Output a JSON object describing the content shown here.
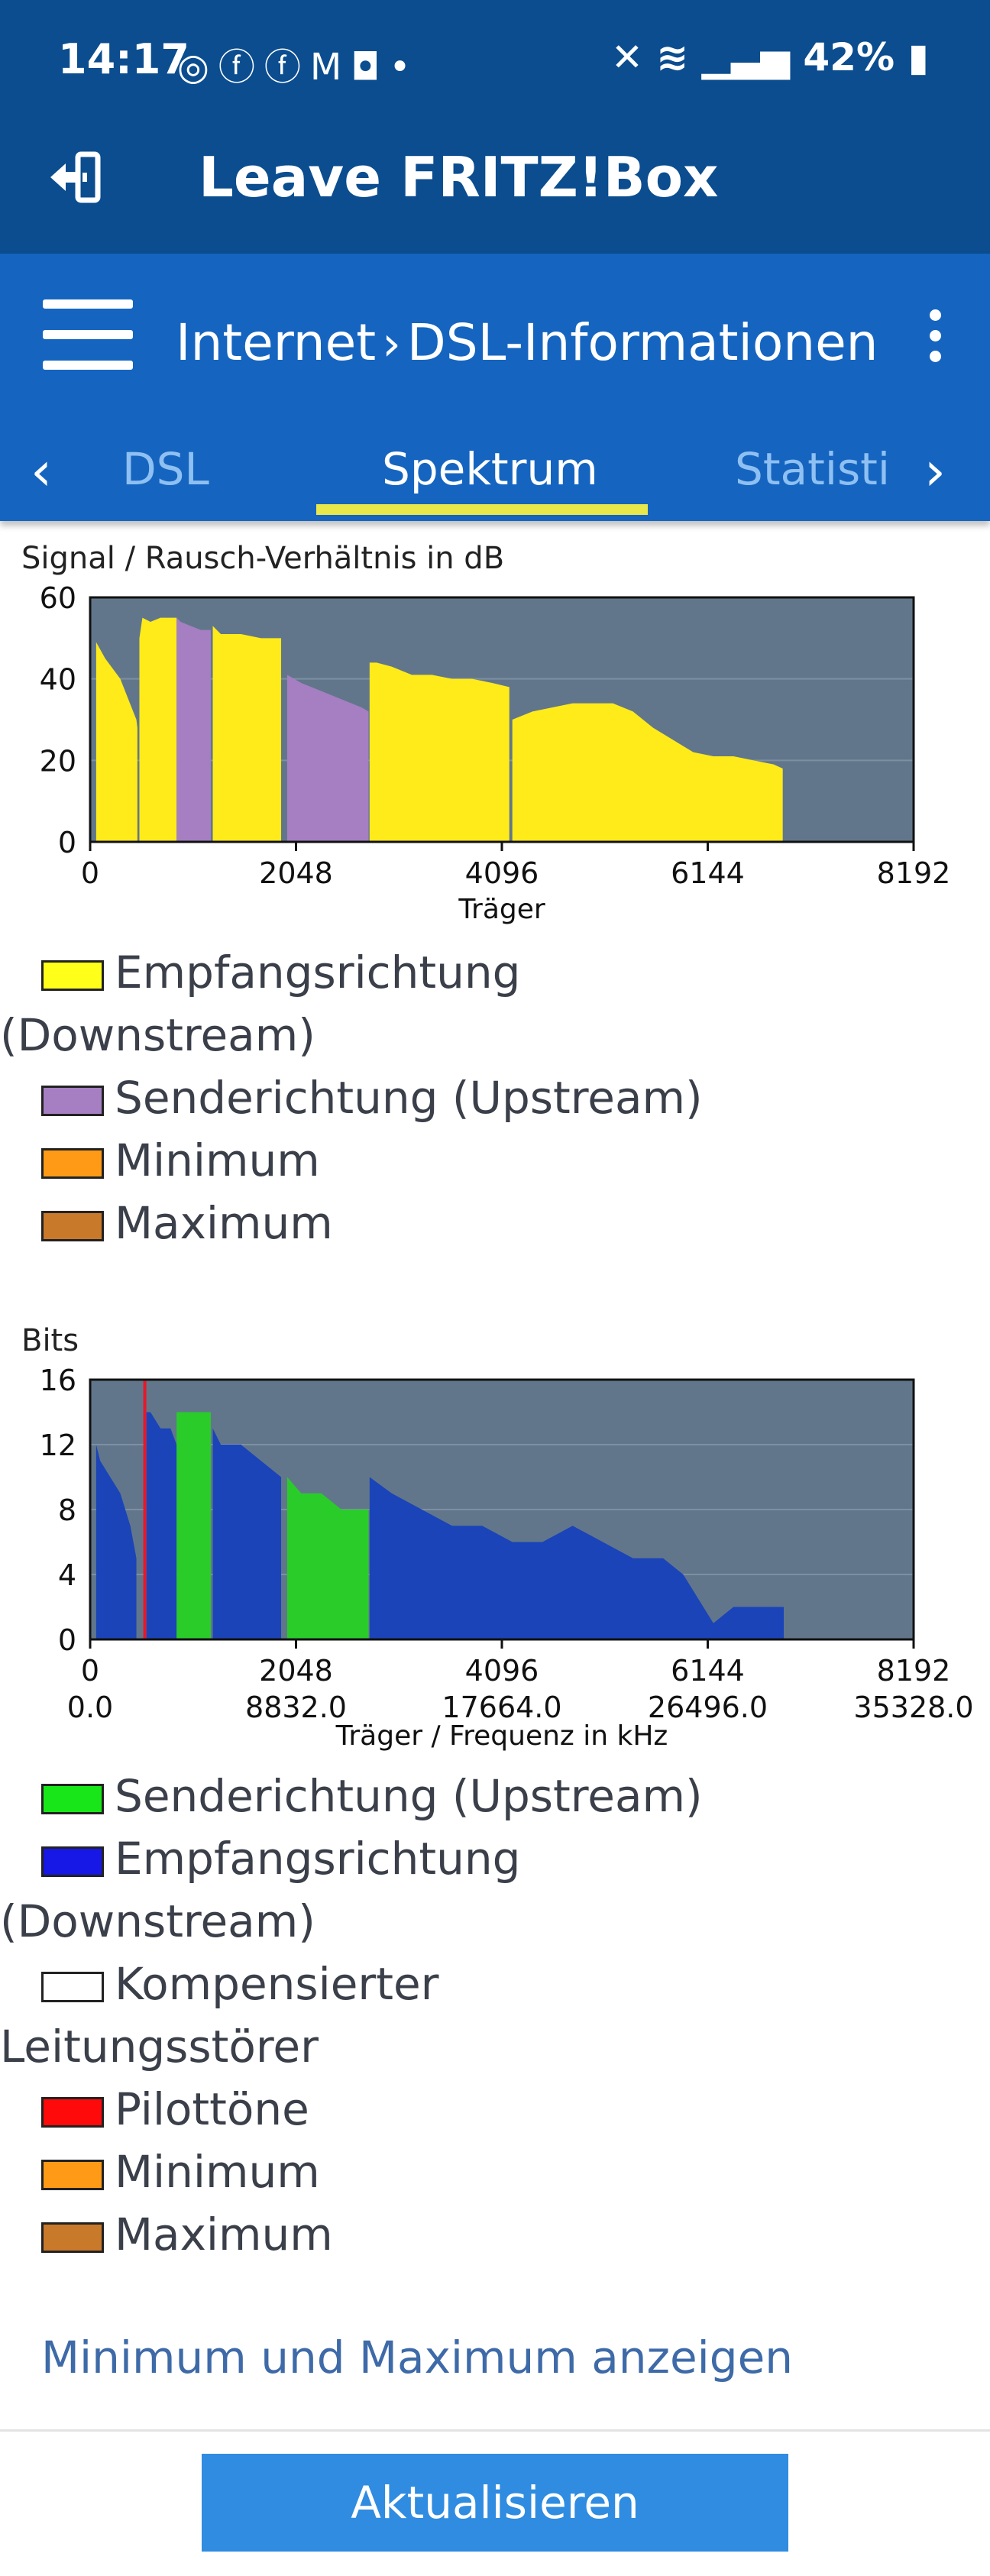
{
  "status_bar": {
    "time": "14:17",
    "battery": "42%",
    "icons": [
      "whatsapp-icon",
      "facebook-icon",
      "facebook-icon",
      "gmail-icon",
      "instagram-icon",
      "dot-icon",
      "mute-icon",
      "wifi-icon",
      "signal-icon",
      "battery-icon"
    ]
  },
  "app_bar": {
    "title": "Leave FRITZ!Box",
    "icon": "exit-icon"
  },
  "nav": {
    "crumb_parent": "Internet",
    "crumb_current": "DSL-Informationen",
    "tabs": [
      {
        "label": "DSL"
      },
      {
        "label": "Spektrum"
      },
      {
        "label": "Statistik"
      }
    ],
    "active_tab": "Spektrum"
  },
  "chart1": {
    "title": "Signal / Rausch-Verhältnis in dB",
    "legend": {
      "downstream": "Empfangsrichtung",
      "downstream2": "(Downstream)",
      "upstream": "Senderichtung (Upstream)",
      "minimum": "Minimum",
      "maximum": "Maximum"
    }
  },
  "chart2": {
    "title": "Bits",
    "legend": {
      "upstream": "Senderichtung (Upstream)",
      "downstream": "Empfangsrichtung",
      "downstream2": "(Downstream)",
      "comp": "Kompensierter",
      "comp2": "Leitungsstörer",
      "pilot": "Pilottöne",
      "minimum": "Minimum",
      "maximum": "Maximum"
    }
  },
  "colors": {
    "downstream_snr": "#ffeb1a",
    "upstream_snr": "#a57fc2",
    "upstream_bits": "#2acc2a",
    "downstream_bits": "#1a44b8",
    "pilot": "#e5182a",
    "minimum": "#ff9a16",
    "maximum": "#c9792a",
    "plot_bg": "#62768b"
  },
  "chart_data": [
    {
      "type": "area",
      "title": "Signal / Rausch-Verhältnis in dB",
      "xlabel": "Träger",
      "ylabel": "",
      "xlim": [
        0,
        8192
      ],
      "ylim": [
        0,
        60
      ],
      "xticks": [
        0,
        2048,
        4096,
        6144,
        8192
      ],
      "yticks": [
        0,
        20,
        40,
        60
      ],
      "grid": true,
      "legend_placement": "below",
      "series": [
        {
          "name": "Empfangsrichtung (Downstream)",
          "segments": [
            {
              "x": [
                60,
                150,
                300,
                460,
                470
              ],
              "y": [
                49,
                45,
                40,
                30,
                28
              ]
            },
            {
              "x": [
                490,
                520,
                600,
                700,
                860
              ],
              "y": [
                50,
                55,
                54,
                55,
                55
              ]
            },
            {
              "x": [
                1220,
                1300,
                1500,
                1700,
                1900
              ],
              "y": [
                53,
                51,
                51,
                50,
                50
              ]
            },
            {
              "x": [
                2780,
                2850,
                3000,
                3200,
                3400,
                3600,
                3800,
                4000,
                4170
              ],
              "y": [
                44,
                44,
                43,
                41,
                41,
                40,
                40,
                39,
                38
              ]
            },
            {
              "x": [
                4200,
                4400,
                4600,
                4800,
                5000,
                5200,
                5400,
                5600,
                5800,
                6000,
                6200,
                6400,
                6600,
                6800,
                6890
              ],
              "y": [
                30,
                32,
                33,
                34,
                34,
                34,
                32,
                28,
                25,
                22,
                21,
                21,
                20,
                19,
                18
              ]
            }
          ]
        },
        {
          "name": "Senderichtung (Upstream)",
          "segments": [
            {
              "x": [
                860,
                900,
                1000,
                1100,
                1200
              ],
              "y": [
                55,
                54,
                53,
                52,
                52
              ]
            },
            {
              "x": [
                1960,
                2100,
                2300,
                2500,
                2700,
                2770
              ],
              "y": [
                41,
                39,
                37,
                35,
                33,
                32
              ]
            }
          ]
        },
        {
          "name": "Minimum",
          "segments": []
        },
        {
          "name": "Maximum",
          "segments": []
        }
      ]
    },
    {
      "type": "area",
      "title": "Bits",
      "xlabel": "Träger / Frequenz in kHz",
      "ylabel": "",
      "xlim": [
        0,
        8192
      ],
      "ylim": [
        0,
        16
      ],
      "xticks": [
        0,
        2048,
        4096,
        6144,
        8192
      ],
      "xticks_secondary": [
        "0.0",
        "8832.0",
        "17664.0",
        "26496.0",
        "35328.0"
      ],
      "yticks": [
        0,
        4,
        8,
        12,
        16
      ],
      "grid": true,
      "legend_placement": "below",
      "series": [
        {
          "name": "Empfangsrichtung (Downstream)",
          "segments": [
            {
              "x": [
                60,
                100,
                200,
                300,
                400,
                460
              ],
              "y": [
                12,
                11,
                10,
                9,
                7,
                5
              ]
            },
            {
              "x": [
                560,
                600,
                700,
                800,
                860
              ],
              "y": [
                14,
                14,
                13,
                13,
                12
              ]
            },
            {
              "x": [
                1220,
                1300,
                1500,
                1700,
                1900
              ],
              "y": [
                13,
                12,
                12,
                11,
                10
              ]
            },
            {
              "x": [
                2780,
                3000,
                3300,
                3600,
                3900,
                4200,
                4500,
                4800,
                5100,
                5400,
                5700,
                5900,
                6000,
                6100,
                6200,
                6400,
                6600,
                6900
              ],
              "y": [
                10,
                9,
                8,
                7,
                7,
                6,
                6,
                7,
                6,
                5,
                5,
                4,
                3,
                2,
                1,
                2,
                2,
                2
              ]
            }
          ]
        },
        {
          "name": "Senderichtung (Upstream)",
          "segments": [
            {
              "x": [
                860,
                900,
                1100,
                1200
              ],
              "y": [
                14,
                14,
                14,
                14
              ]
            },
            {
              "x": [
                1960,
                2100,
                2300,
                2500,
                2770
              ],
              "y": [
                10,
                9,
                9,
                8,
                8
              ]
            }
          ]
        },
        {
          "name": "Kompensierter Leitungsstörer",
          "segments": []
        },
        {
          "name": "Pilottöne",
          "x": [
            544
          ]
        },
        {
          "name": "Minimum",
          "segments": []
        },
        {
          "name": "Maximum",
          "segments": []
        }
      ]
    }
  ],
  "actions": {
    "minmax_link": "Minimum und Maximum anzeigen",
    "refresh_button": "Aktualisieren"
  }
}
